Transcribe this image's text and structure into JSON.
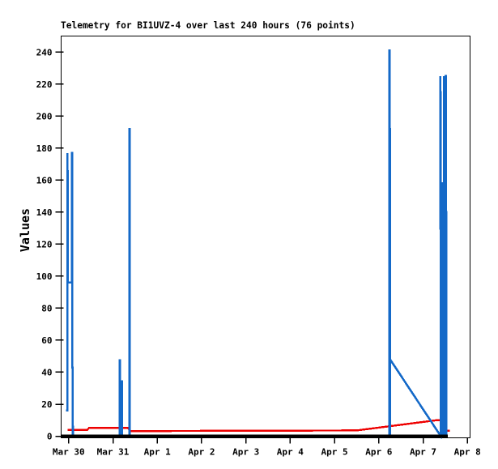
{
  "window": {
    "background": "#ffffff"
  },
  "chart_data": {
    "type": "line",
    "title": "Telemetry for BI1UVZ-4 over last 240 hours (76 points)",
    "ylabel": "Values",
    "xlabel": "",
    "legend": "none",
    "grid": false,
    "axis_color": "#000000",
    "x_unit": "days since Mar 30",
    "xlim_days": [
      -0.17,
      9.06
    ],
    "ylim": [
      -1,
      250
    ],
    "y_ticks": [
      0,
      20,
      40,
      60,
      80,
      100,
      120,
      140,
      160,
      180,
      200,
      220,
      240
    ],
    "x_ticks": [
      {
        "day": 0,
        "label": "Mar 30"
      },
      {
        "day": 1,
        "label": "Mar 31"
      },
      {
        "day": 2,
        "label": "Apr 1"
      },
      {
        "day": 3,
        "label": "Apr 2"
      },
      {
        "day": 4,
        "label": "Apr 3"
      },
      {
        "day": 5,
        "label": "Apr 4"
      },
      {
        "day": 6,
        "label": "Apr 5"
      },
      {
        "day": 7,
        "label": "Apr 6"
      },
      {
        "day": 8,
        "label": "Apr 7"
      },
      {
        "day": 9,
        "label": "Apr 8"
      }
    ],
    "draw_order": [
      "channel-red",
      "channel-blue",
      "channel-black"
    ],
    "series": [
      {
        "name": "channel-blue",
        "color": "#1469c8",
        "width": 2.6,
        "points": [
          [
            -0.06,
            16
          ],
          [
            -0.027,
            16
          ],
          [
            -0.027,
            177
          ],
          [
            -0.02,
            150
          ],
          [
            -0.02,
            96
          ],
          [
            0.07,
            96
          ],
          [
            0.077,
            177
          ],
          [
            0.083,
            177
          ],
          [
            0.083,
            43
          ],
          [
            0.09,
            43
          ],
          [
            0.095,
            0
          ],
          [
            1.15,
            0
          ],
          [
            1.155,
            48
          ],
          [
            1.16,
            0
          ],
          [
            1.195,
            0
          ],
          [
            1.2,
            35
          ],
          [
            1.205,
            0
          ],
          [
            1.37,
            0
          ],
          [
            1.37,
            112
          ],
          [
            1.375,
            192
          ],
          [
            1.38,
            192
          ],
          [
            1.38,
            0
          ],
          [
            7.238,
            0
          ],
          [
            7.238,
            241
          ],
          [
            7.245,
            241
          ],
          [
            7.245,
            192
          ],
          [
            7.25,
            192
          ],
          [
            7.25,
            120
          ],
          [
            7.252,
            120
          ],
          [
            7.252,
            0
          ],
          [
            7.256,
            0
          ],
          [
            7.256,
            48
          ],
          [
            8.4,
            0
          ],
          [
            8.39,
            225
          ],
          [
            8.395,
            207
          ],
          [
            8.4,
            158
          ],
          [
            8.4,
            0
          ],
          [
            8.425,
            0
          ],
          [
            8.425,
            158
          ],
          [
            8.43,
            158
          ],
          [
            8.43,
            0
          ],
          [
            8.465,
            0
          ],
          [
            8.465,
            67
          ],
          [
            8.47,
            225
          ],
          [
            8.478,
            206
          ],
          [
            8.48,
            206
          ],
          [
            8.48,
            0
          ],
          [
            8.51,
            0
          ],
          [
            8.51,
            225
          ],
          [
            8.516,
            225
          ],
          [
            8.516,
            140
          ],
          [
            8.52,
            140
          ],
          [
            8.52,
            0
          ],
          [
            8.555,
            0
          ]
        ]
      },
      {
        "name": "channel-red",
        "color": "#ee0000",
        "width": 2.4,
        "points": [
          [
            -0.02,
            4.0
          ],
          [
            0.42,
            4.0
          ],
          [
            0.46,
            5.2
          ],
          [
            1.33,
            5.2
          ],
          [
            1.4,
            3.2
          ],
          [
            6.5,
            3.6
          ],
          [
            8.3,
            10.0
          ],
          [
            8.4,
            10.0
          ],
          [
            8.4,
            3.4
          ],
          [
            8.6,
            3.4
          ]
        ]
      },
      {
        "name": "channel-black",
        "color": "#000000",
        "width": 4,
        "points": [
          [
            -0.16,
            0
          ],
          [
            8.56,
            0
          ]
        ]
      }
    ]
  }
}
